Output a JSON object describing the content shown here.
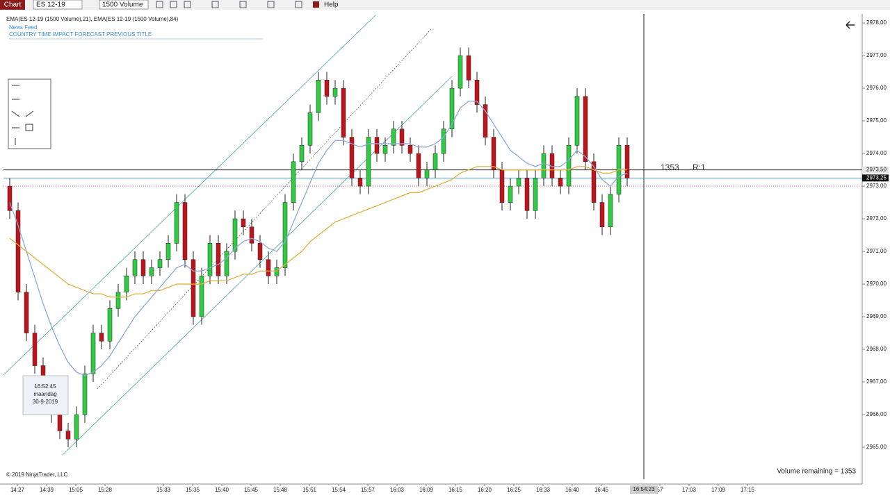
{
  "toolbar": {
    "tab": "Chart",
    "instrument": "ES 12-19",
    "interval": "1500 Volume",
    "menu": "Help"
  },
  "indicator_label": "EMA(ES 12-19 (1500 Volume),21), EMA(ES 12-19 (1500 Volume),84)",
  "news": {
    "title": "News Feed",
    "columns": "COUNTRY TIME  IMPACT  FORECAST PREVIOUS TITLE"
  },
  "tooltip": {
    "time": "16:52:45",
    "day": "maandag",
    "date": "30-9-2019"
  },
  "order_info": {
    "count": "1353",
    "ratio": "R:1"
  },
  "volume_remaining": "Volume remaining = 1353",
  "copyright": "© 2019 NinjaTrader, LLC",
  "crosshair_time": "16:54:23",
  "chart_data": {
    "type": "candlestick",
    "ylim": [
      2964,
      2978.3
    ],
    "yticks": [
      {
        "value": 2965,
        "label": "2965,00"
      },
      {
        "value": 2966,
        "label": "2966,00"
      },
      {
        "value": 2967,
        "label": "2967,00"
      },
      {
        "value": 2968,
        "label": "2968,00"
      },
      {
        "value": 2969,
        "label": "2969,00"
      },
      {
        "value": 2970,
        "label": "2970,00"
      },
      {
        "value": 2971,
        "label": "2971,00"
      },
      {
        "value": 2972,
        "label": "2972,00"
      },
      {
        "value": 2973,
        "label": "2973,00"
      },
      {
        "value": 2974,
        "label": "2974,00"
      },
      {
        "value": 2975,
        "label": "2975,00"
      },
      {
        "value": 2976,
        "label": "2976,00"
      },
      {
        "value": 2977,
        "label": "2977,00"
      },
      {
        "value": 2978,
        "label": "2978,00"
      }
    ],
    "x_labels": [
      "14:27",
      "14:39",
      "15:05",
      "15:28",
      null,
      "15:33",
      "15:35",
      "15:40",
      "15:45",
      "15:48",
      "15:51",
      "15:54",
      "15:57",
      "16:03",
      "16:09",
      "16:15",
      "16:20",
      "16:25",
      "16:33",
      "16:40",
      "16:45",
      null,
      "57",
      "17:03",
      "17:09",
      "17:15"
    ],
    "up_color": "#2ecc40",
    "down_color": "#c0141c",
    "open": [
      2973,
      2972.25,
      2969.75,
      2968.5,
      2967.5,
      2966.25,
      2966,
      2965.5,
      2965.25,
      2966,
      2967.25,
      2968.5,
      2968.25,
      2969.25,
      2969.75,
      2970.25,
      2970.75,
      2970.25,
      2970.5,
      2970.75,
      2971.25,
      2972.5,
      2970.75,
      2969,
      2970.25,
      2971.25,
      2970.25,
      2971,
      2972,
      2971.75,
      2971.25,
      2970.75,
      2970.25,
      2970.5,
      2972.5,
      2973.75,
      2974.25,
      2975.25,
      2976.25,
      2975.75,
      2976,
      2974.5,
      2973.25,
      2973,
      2974.5,
      2974,
      2974.25,
      2974.75,
      2974.25,
      2974,
      2973.25,
      2973.5,
      2974,
      2974.75,
      2976,
      2977,
      2976.25,
      2975.5,
      2974.5,
      2973.5,
      2972.5,
      2973,
      2973.25,
      2972.25,
      2973.25,
      2974,
      2973.25,
      2973,
      2974.25,
      2975.75,
      2973.75,
      2972.5,
      2971.75,
      2972.75,
      2974.25
    ],
    "high": [
      2973.25,
      2972.5,
      2970,
      2968.75,
      2967.75,
      2966.5,
      2966.25,
      2965.75,
      2966.25,
      2967.5,
      2968.75,
      2968.75,
      2969.5,
      2970,
      2970.5,
      2971,
      2971,
      2970.75,
      2971,
      2971.5,
      2972.75,
      2972.75,
      2971,
      2970.5,
      2971.5,
      2971.5,
      2971.25,
      2972.25,
      2972.25,
      2972,
      2971.5,
      2971,
      2970.75,
      2972.75,
      2974,
      2974.5,
      2975.5,
      2976.5,
      2976.5,
      2976.25,
      2976.25,
      2974.75,
      2973.5,
      2974.75,
      2974.75,
      2974.5,
      2975,
      2975,
      2974.5,
      2974.25,
      2973.75,
      2974.25,
      2975,
      2976.25,
      2977.25,
      2977.25,
      2976.5,
      2975.75,
      2974.75,
      2973.75,
      2973.25,
      2973.5,
      2973.5,
      2973.5,
      2974.25,
      2974.25,
      2973.5,
      2974.5,
      2976,
      2976,
      2974,
      2972.75,
      2973,
      2974.5,
      2974.5
    ],
    "low": [
      2972,
      2969.5,
      2968.25,
      2967.25,
      2966,
      2965.75,
      2965.25,
      2965,
      2965,
      2965.75,
      2967,
      2968,
      2968,
      2969,
      2969.5,
      2970,
      2970,
      2970,
      2970.25,
      2970.5,
      2971,
      2970.5,
      2968.75,
      2968.75,
      2970,
      2970,
      2970,
      2970.75,
      2971.5,
      2971,
      2970.5,
      2970,
      2970,
      2970.25,
      2972.25,
      2973.5,
      2974,
      2975,
      2975.5,
      2975.5,
      2974.25,
      2973,
      2972.75,
      2972.75,
      2973.75,
      2973.75,
      2974,
      2974,
      2973.75,
      2973,
      2973,
      2973.25,
      2973.75,
      2974.5,
      2975.75,
      2976,
      2975.25,
      2974.25,
      2973.25,
      2972.25,
      2972.25,
      2972.75,
      2972,
      2972,
      2973,
      2973,
      2972.75,
      2972.75,
      2974,
      2973.5,
      2972.25,
      2971.5,
      2971.5,
      2972.5,
      2973
    ],
    "close": [
      2972.25,
      2969.75,
      2968.5,
      2967.5,
      2966.25,
      2966,
      2965.5,
      2965.25,
      2966,
      2967.25,
      2968.5,
      2968.25,
      2969.25,
      2969.75,
      2970.25,
      2970.75,
      2970.25,
      2970.5,
      2970.75,
      2971.25,
      2972.5,
      2970.75,
      2969,
      2970.25,
      2971.25,
      2970.25,
      2971,
      2972,
      2971.75,
      2971.25,
      2970.75,
      2970.25,
      2970.5,
      2972.5,
      2973.75,
      2974.25,
      2975.25,
      2976.25,
      2975.75,
      2976,
      2974.5,
      2973.25,
      2973,
      2974.5,
      2974,
      2974.25,
      2974.75,
      2974.25,
      2974,
      2973.25,
      2973.5,
      2974,
      2974.75,
      2976,
      2977,
      2976.25,
      2975.5,
      2974.5,
      2973.5,
      2972.5,
      2973,
      2973.25,
      2972.25,
      2973.25,
      2974,
      2973.25,
      2973,
      2974.25,
      2975.75,
      2973.75,
      2972.5,
      2971.75,
      2972.75,
      2974.25,
      2973.25
    ],
    "series": [
      {
        "color": "#8ea6dc",
        "values": [
          2972.5,
          2971.8,
          2971.0,
          2970.2,
          2969.4,
          2968.7,
          2968.1,
          2967.6,
          2967.3,
          2967.2,
          2967.3,
          2967.5,
          2967.8,
          2968.2,
          2968.6,
          2969.0,
          2969.3,
          2969.6,
          2969.9,
          2970.2,
          2970.5,
          2970.6,
          2970.4,
          2970.4,
          2970.5,
          2970.6,
          2970.8,
          2971.1,
          2971.3,
          2971.4,
          2971.3,
          2971.1,
          2971.0,
          2971.3,
          2971.9,
          2972.5,
          2973.1,
          2973.7,
          2974.1,
          2974.4,
          2974.4,
          2974.3,
          2974.2,
          2974.3,
          2974.3,
          2974.3,
          2974.3,
          2974.3,
          2974.3,
          2974.2,
          2974.2,
          2974.3,
          2974.5,
          2974.9,
          2975.4,
          2975.6,
          2975.6,
          2975.3,
          2974.9,
          2974.5,
          2974.1,
          2973.9,
          2973.7,
          2973.6,
          2973.7,
          2973.6,
          2973.6,
          2973.8,
          2974.1,
          2973.9,
          2973.6,
          2973.2,
          2973.0,
          2973.3,
          2973.4
        ]
      },
      {
        "color": "#e0b040",
        "values": [
          2971.4,
          2971.2,
          2971.0,
          2970.8,
          2970.6,
          2970.4,
          2970.2,
          2970.0,
          2969.9,
          2969.8,
          2969.7,
          2969.7,
          2969.6,
          2969.6,
          2969.6,
          2969.7,
          2969.7,
          2969.8,
          2969.8,
          2969.9,
          2970.0,
          2970.0,
          2970.0,
          2970.0,
          2970.1,
          2970.1,
          2970.1,
          2970.2,
          2970.3,
          2970.3,
          2970.4,
          2970.4,
          2970.4,
          2970.6,
          2970.8,
          2971.0,
          2971.3,
          2971.5,
          2971.7,
          2971.9,
          2972.0,
          2972.1,
          2972.2,
          2972.3,
          2972.4,
          2972.5,
          2972.6,
          2972.7,
          2972.8,
          2972.8,
          2972.9,
          2973.0,
          2973.1,
          2973.2,
          2973.4,
          2973.5,
          2973.6,
          2973.6,
          2973.6,
          2973.5,
          2973.5,
          2973.5,
          2973.5,
          2973.5,
          2973.5,
          2973.5,
          2973.5,
          2973.5,
          2973.6,
          2973.6,
          2973.5,
          2973.4,
          2973.4,
          2973.5,
          2973.5
        ]
      }
    ],
    "crosshair_price": 2973.5,
    "price_markers": [
      {
        "value": 2973.5,
        "label": "2973,50",
        "color": "#e6e6e6"
      },
      {
        "value": 2973.25,
        "label": "2973,25",
        "color": "#111111"
      }
    ],
    "lines": [
      {
        "value": 2973.25,
        "color": "#5aa0e0"
      },
      {
        "value": 2973,
        "color": "#e05070"
      }
    ]
  }
}
